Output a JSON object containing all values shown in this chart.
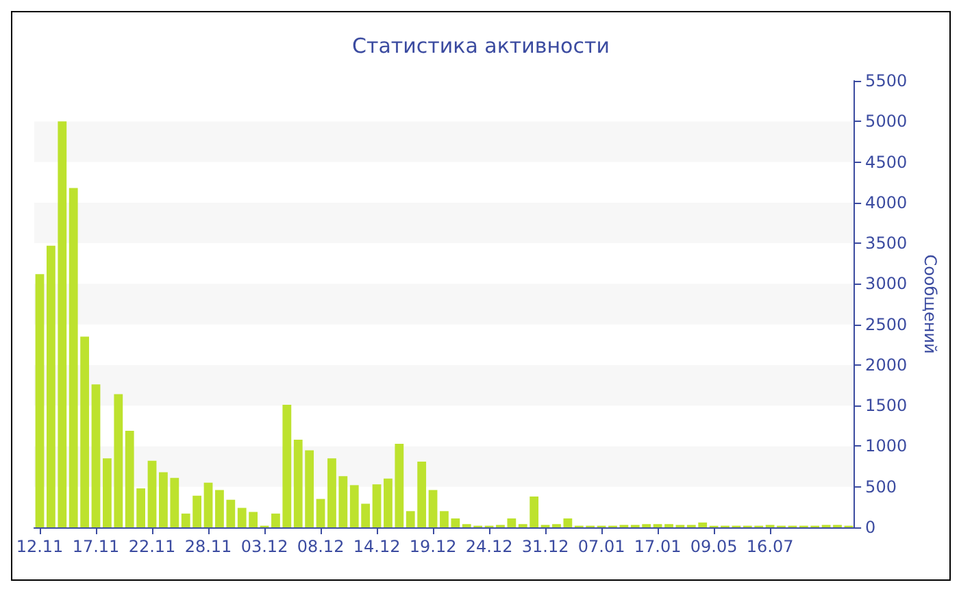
{
  "chart_data": {
    "type": "bar",
    "title": "Статистика активности",
    "ylabel": "Сообщений",
    "categories": [
      "12.11",
      null,
      null,
      null,
      null,
      "17.11",
      null,
      null,
      null,
      null,
      "22.11",
      null,
      null,
      null,
      null,
      "28.11",
      null,
      null,
      null,
      null,
      "03.12",
      null,
      null,
      null,
      null,
      "08.12",
      null,
      null,
      null,
      null,
      "14.12",
      null,
      null,
      null,
      null,
      "19.12",
      null,
      null,
      null,
      null,
      "24.12",
      null,
      null,
      null,
      null,
      "31.12",
      null,
      null,
      null,
      null,
      "07.01",
      null,
      null,
      null,
      null,
      "17.01",
      null,
      null,
      null,
      null,
      "09.05",
      null,
      null,
      null,
      null,
      "16.07",
      null,
      null,
      null,
      null,
      null,
      null,
      null
    ],
    "values": [
      3120,
      3470,
      5000,
      4180,
      2350,
      1760,
      850,
      1640,
      1190,
      480,
      820,
      680,
      610,
      170,
      390,
      550,
      460,
      340,
      240,
      190,
      20,
      170,
      1510,
      1080,
      950,
      350,
      850,
      630,
      520,
      290,
      530,
      600,
      1030,
      200,
      810,
      460,
      200,
      110,
      40,
      20,
      20,
      30,
      110,
      40,
      380,
      30,
      40,
      110,
      20,
      20,
      20,
      20,
      30,
      30,
      40,
      40,
      40,
      30,
      30,
      60,
      20,
      20,
      20,
      20,
      20,
      30,
      20,
      20,
      20,
      20,
      30,
      30,
      20
    ],
    "color": "#bde22e",
    "ylim": [
      0,
      5500
    ],
    "yticks": [
      0,
      500,
      1000,
      1500,
      2000,
      2500,
      3000,
      3500,
      4000,
      4500,
      5000,
      5500
    ]
  }
}
